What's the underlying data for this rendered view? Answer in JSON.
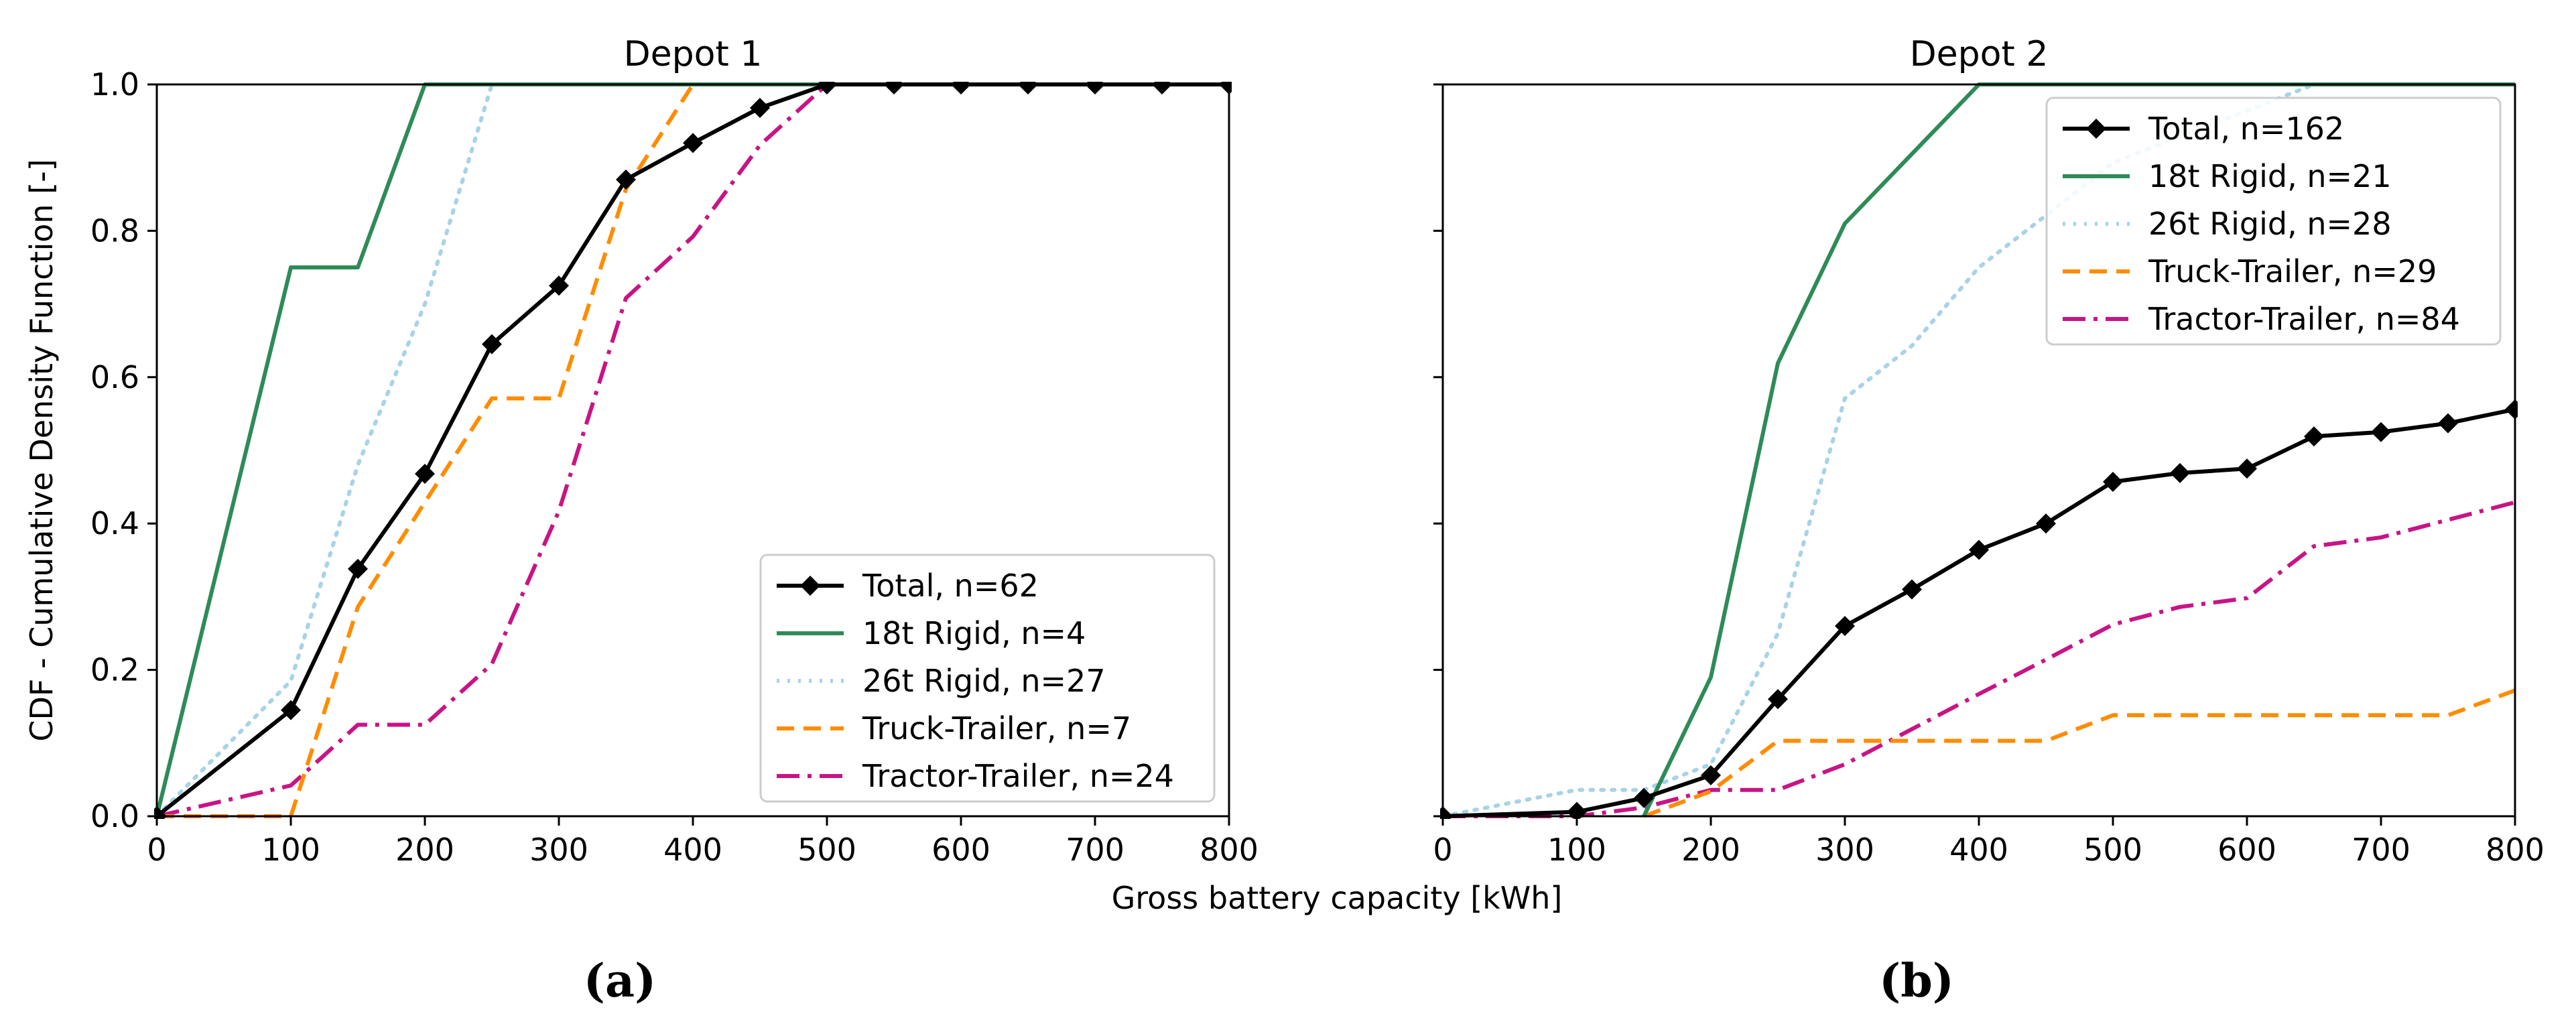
{
  "xlabel": "Gross battery capacity [kWh]",
  "ylabel": "CDF - Cumulative Density Function [-]",
  "colors": {
    "total": "#000000",
    "rigid18": "#2e8b57",
    "rigid26": "#a8d3e6",
    "truck": "#ff8c00",
    "tractor": "#c71585"
  },
  "chart_data": [
    {
      "type": "line",
      "panel_label": "(a)",
      "title": "Depot 1",
      "xlim": [
        0,
        800
      ],
      "ylim": [
        0,
        1
      ],
      "xticks": [
        "0",
        "100",
        "200",
        "300",
        "400",
        "500",
        "600",
        "700",
        "800"
      ],
      "yticks": [
        "0.0",
        "0.2",
        "0.4",
        "0.6",
        "0.8",
        "1.0"
      ],
      "legend_position": "lower-right",
      "series": [
        {
          "key": "total",
          "name": "Total, n=62",
          "x": [
            0,
            100,
            150,
            200,
            250,
            300,
            350,
            400,
            450,
            500,
            550,
            600,
            650,
            700,
            750,
            800
          ],
          "y": [
            0.0,
            0.145,
            0.338,
            0.468,
            0.645,
            0.725,
            0.87,
            0.92,
            0.968,
            1.0,
            1.0,
            1.0,
            1.0,
            1.0,
            1.0,
            1.0
          ]
        },
        {
          "key": "rigid18",
          "name": "18t Rigid, n=4",
          "x": [
            0,
            100,
            150,
            200,
            800
          ],
          "y": [
            0.0,
            0.75,
            0.75,
            1.0,
            1.0
          ]
        },
        {
          "key": "rigid26",
          "name": "26t Rigid, n=27",
          "x": [
            0,
            100,
            150,
            200,
            250,
            800
          ],
          "y": [
            0.0,
            0.185,
            0.48,
            0.7,
            1.0,
            1.0
          ]
        },
        {
          "key": "truck",
          "name": "Truck-Trailer, n=7",
          "x": [
            0,
            100,
            150,
            200,
            250,
            300,
            350,
            400,
            800
          ],
          "y": [
            0.0,
            0.0,
            0.286,
            0.429,
            0.571,
            0.571,
            0.857,
            1.0,
            1.0
          ]
        },
        {
          "key": "tractor",
          "name": "Tractor-Trailer, n=24",
          "x": [
            0,
            100,
            150,
            200,
            250,
            300,
            350,
            400,
            450,
            500,
            800
          ],
          "y": [
            0.0,
            0.042,
            0.125,
            0.125,
            0.208,
            0.417,
            0.708,
            0.792,
            0.917,
            1.0,
            1.0
          ]
        }
      ]
    },
    {
      "type": "line",
      "panel_label": "(b)",
      "title": "Depot 2",
      "xlim": [
        0,
        800
      ],
      "ylim": [
        0,
        1
      ],
      "xticks": [
        "0",
        "100",
        "200",
        "300",
        "400",
        "500",
        "600",
        "700",
        "800"
      ],
      "yticks": [],
      "legend_position": "upper-right",
      "series": [
        {
          "key": "total",
          "name": "Total, n=162",
          "x": [
            0,
            100,
            150,
            200,
            250,
            300,
            350,
            400,
            450,
            500,
            550,
            600,
            650,
            700,
            750,
            800
          ],
          "y": [
            0.0,
            0.006,
            0.025,
            0.056,
            0.16,
            0.26,
            0.31,
            0.364,
            0.4,
            0.457,
            0.469,
            0.475,
            0.519,
            0.525,
            0.537,
            0.556
          ]
        },
        {
          "key": "rigid18",
          "name": "18t Rigid, n=21",
          "x": [
            150,
            200,
            250,
            300,
            350,
            400,
            800
          ],
          "y": [
            0.0,
            0.19,
            0.619,
            0.81,
            0.905,
            1.0,
            1.0
          ]
        },
        {
          "key": "rigid26",
          "name": "26t Rigid, n=28",
          "x": [
            0,
            100,
            150,
            200,
            250,
            300,
            350,
            400,
            450,
            500,
            550,
            600,
            650,
            800
          ],
          "y": [
            0.0,
            0.036,
            0.036,
            0.071,
            0.25,
            0.571,
            0.643,
            0.75,
            0.821,
            0.893,
            0.929,
            0.964,
            1.0,
            1.0
          ]
        },
        {
          "key": "truck",
          "name": "Truck-Trailer, n=29",
          "x": [
            150,
            200,
            250,
            300,
            350,
            400,
            450,
            500,
            550,
            600,
            650,
            700,
            750,
            800
          ],
          "y": [
            0.0,
            0.034,
            0.103,
            0.103,
            0.103,
            0.103,
            0.103,
            0.138,
            0.138,
            0.138,
            0.138,
            0.138,
            0.138,
            0.172
          ]
        },
        {
          "key": "tractor",
          "name": "Tractor-Trailer, n=84",
          "x": [
            0,
            100,
            150,
            200,
            250,
            300,
            350,
            400,
            450,
            500,
            550,
            600,
            650,
            700,
            750,
            800
          ],
          "y": [
            0.0,
            0.0,
            0.012,
            0.036,
            0.036,
            0.071,
            0.119,
            0.167,
            0.214,
            0.262,
            0.286,
            0.298,
            0.369,
            0.381,
            0.405,
            0.429
          ]
        }
      ]
    }
  ]
}
